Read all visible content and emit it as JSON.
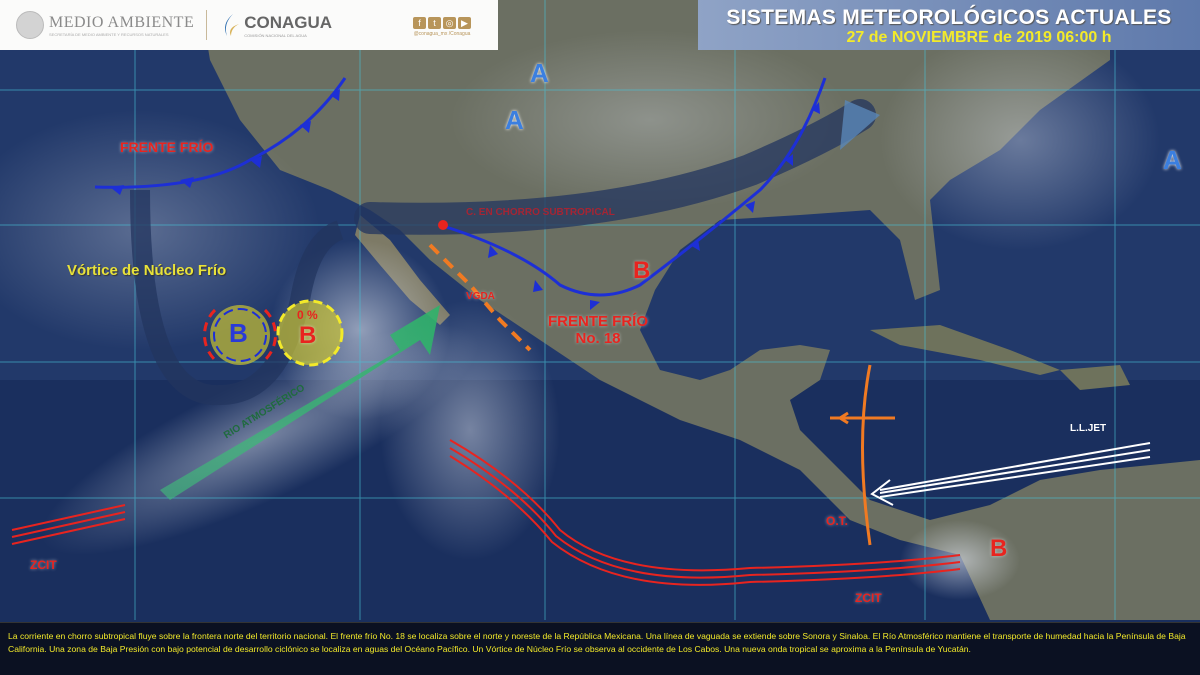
{
  "header": {
    "agency1": "MEDIO AMBIENTE",
    "agency1_sub": "SECRETARÍA DE MEDIO AMBIENTE Y RECURSOS NATURALES",
    "agency2": "CONAGUA",
    "agency2_sub": "COMISIÓN NACIONAL DEL AGUA",
    "social_handle": "@conagua_mx /Conagua",
    "social_icons": [
      "facebook-icon",
      "twitter-icon",
      "instagram-icon",
      "youtube-icon"
    ]
  },
  "title": {
    "main": "SISTEMAS METEOROLÓGICOS ACTUALES",
    "date": "27 de NOVIEMBRE  de 2019 06:00 h"
  },
  "map_labels": {
    "frente_frio_nw": "FRENTE FRÍO",
    "a1": "A",
    "a2": "A",
    "a3": "A",
    "jet": "C. EN CHORRO SUBTROPICAL",
    "vortice": "Vórtice de Núcleo Frío",
    "b_vortex": "B",
    "b_low_pct": "0 %",
    "b_low": "B",
    "vgda": "VGDA",
    "frente18_line1": "FRENTE FRÍO",
    "frente18_line2": "No. 18",
    "b_front": "B",
    "rio": "RIO ATMOSFÉRICO",
    "lljet": "L.L.JET",
    "ot": "O.T.",
    "zcit_w": "ZCIT",
    "zcit_e": "ZCIT",
    "b_colombia": "B"
  },
  "colors": {
    "cold_front": "#1d2fd6",
    "low": "#e8241f",
    "high": "#3b7fe0",
    "itcz": "#e8241f",
    "trough": "#f07a22",
    "jet": "#23365f",
    "atm_river": "#2fb36a",
    "text_highlight": "#f3ea2a"
  },
  "description": "La corriente en chorro subtropical fluye sobre la frontera norte del territorio nacional. El frente frío No. 18 se localiza sobre el norte y noreste de la República Mexicana. Una línea de vaguada se extiende sobre Sonora y Sinaloa. El Río Atmosférico mantiene el transporte de humedad hacia la Península de Baja California. Una zona de Baja Presión con bajo potencial de desarrollo ciclónico se localiza en aguas del Océano Pacífico. Un Vórtice de Núcleo Frío se observa al occidente de Los Cabos. Una nueva onda tropical  se aproxima a la Península de Yucatán."
}
